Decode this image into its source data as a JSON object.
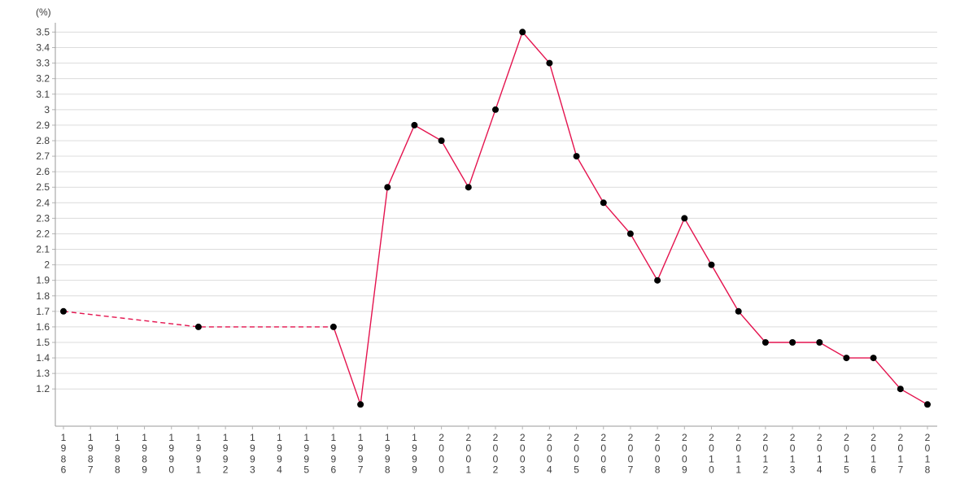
{
  "chart_data": {
    "type": "line",
    "title": "",
    "xlabel": "",
    "ylabel": "(%)",
    "unit_label": "(%)",
    "legend": "none",
    "grid": true,
    "categories": [
      "1986",
      "1987",
      "1988",
      "1989",
      "1990",
      "1991",
      "1992",
      "1993",
      "1994",
      "1995",
      "1996",
      "1997",
      "1998",
      "1999",
      "2000",
      "2001",
      "2002",
      "2003",
      "2004",
      "2005",
      "2006",
      "2007",
      "2008",
      "2009",
      "2010",
      "2011",
      "2012",
      "2013",
      "2014",
      "2015",
      "2016",
      "2017",
      "2018"
    ],
    "y_tick_labels": [
      "3.5",
      "3.4",
      "3.3",
      "3.2",
      "3.1",
      "3",
      "2.9",
      "2.8",
      "2.7",
      "2.6",
      "2.5",
      "2.4",
      "2.3",
      "2.2",
      "2.1",
      "2",
      "1.9",
      "1.8",
      "1.7",
      "1.6",
      "1.5",
      "1.4",
      "1.3",
      "1.2"
    ],
    "ylim": [
      0.96,
      3.56
    ],
    "series": [
      {
        "name": "rate",
        "dashed_until_year": 1996,
        "points": [
          {
            "year": 1986,
            "value": 1.7
          },
          {
            "year": 1991,
            "value": 1.6
          },
          {
            "year": 1996,
            "value": 1.6
          },
          {
            "year": 1997,
            "value": 1.1
          },
          {
            "year": 1998,
            "value": 2.5
          },
          {
            "year": 1999,
            "value": 2.9
          },
          {
            "year": 2000,
            "value": 2.8
          },
          {
            "year": 2001,
            "value": 2.5
          },
          {
            "year": 2002,
            "value": 3.0
          },
          {
            "year": 2003,
            "value": 3.5
          },
          {
            "year": 2004,
            "value": 3.3
          },
          {
            "year": 2005,
            "value": 2.7
          },
          {
            "year": 2006,
            "value": 2.4
          },
          {
            "year": 2007,
            "value": 2.2
          },
          {
            "year": 2008,
            "value": 1.9
          },
          {
            "year": 2009,
            "value": 2.3
          },
          {
            "year": 2010,
            "value": 2.0
          },
          {
            "year": 2011,
            "value": 1.7
          },
          {
            "year": 2012,
            "value": 1.5
          },
          {
            "year": 2013,
            "value": 1.5
          },
          {
            "year": 2014,
            "value": 1.5
          },
          {
            "year": 2015,
            "value": 1.4
          },
          {
            "year": 2016,
            "value": 1.4
          },
          {
            "year": 2017,
            "value": 1.2
          },
          {
            "year": 2018,
            "value": 1.1
          }
        ]
      }
    ],
    "colors": {
      "line": "#e4134e",
      "marker": "#000000",
      "grid": "#dcdcdc",
      "axis": "#9a9a9a",
      "tick": "#b4b4b4",
      "text": "#3c3c3c",
      "background": "#ffffff"
    }
  }
}
